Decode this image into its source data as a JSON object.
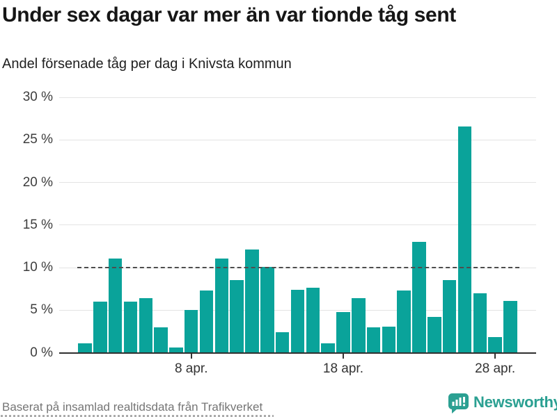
{
  "header": {
    "title": "Under sex dagar var mer än var tionde tåg sent",
    "subtitle": "Andel försenade tåg per dag i Knivsta kommun"
  },
  "footer": {
    "source": "Baserat på insamlad realtidsdata från Trafikverket",
    "brand": "Newsworthy"
  },
  "colors": {
    "bar": "#0aa39a",
    "brand": "#2ba092",
    "grid": "#e3e3e3",
    "axis": "#2f2f2f",
    "reference": "#4d4d4d",
    "title_text": "#161616",
    "muted_text": "#757575"
  },
  "chart_data": {
    "type": "bar",
    "title": "Under sex dagar var mer än var tionde tåg sent",
    "subtitle": "Andel försenade tåg per dag i Knivsta kommun",
    "source_note": "Baserat på insamlad realtidsdata från Trafikverket",
    "unit": "%",
    "categories": [
      "1 apr.",
      "2 apr.",
      "3 apr.",
      "4 apr.",
      "5 apr.",
      "6 apr.",
      "7 apr.",
      "8 apr.",
      "9 apr.",
      "10 apr.",
      "11 apr.",
      "12 apr.",
      "13 apr.",
      "14 apr.",
      "15 apr.",
      "16 apr.",
      "17 apr.",
      "18 apr.",
      "19 apr.",
      "20 apr.",
      "21 apr.",
      "22 apr.",
      "23 apr.",
      "24 apr.",
      "25 apr.",
      "26 apr.",
      "27 apr.",
      "28 apr.",
      "29 apr."
    ],
    "values": [
      1.1,
      6.0,
      11.1,
      6.0,
      6.4,
      3.0,
      0.6,
      5.0,
      7.3,
      11.1,
      8.5,
      12.1,
      10.1,
      2.4,
      7.4,
      7.6,
      1.1,
      4.8,
      6.4,
      3.0,
      3.1,
      7.3,
      13.0,
      4.2,
      8.5,
      26.6,
      7.0,
      1.8,
      6.1
    ],
    "y_ticks": [
      0,
      5,
      10,
      15,
      20,
      25,
      30
    ],
    "y_tick_suffix": " %",
    "x_tick_labels": [
      "8 apr.",
      "18 apr.",
      "28 apr."
    ],
    "x_tick_days": [
      8,
      18,
      28
    ],
    "reference_line": 10,
    "ylim": [
      0,
      30
    ],
    "grid": true,
    "legend": false
  }
}
